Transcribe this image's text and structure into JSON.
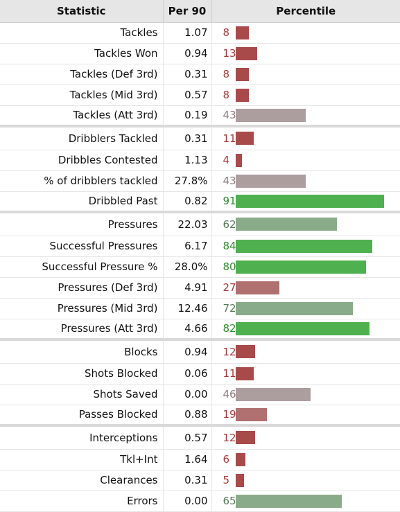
{
  "header": {
    "statistic": "Statistic",
    "per90": "Per 90",
    "percentile": "Percentile"
  },
  "colors": {
    "low": "#a94a4a",
    "mid": "#ac9d9f",
    "mid_high": "#8aab8a",
    "high": "#4fb04f"
  },
  "groups": [
    {
      "rows": [
        {
          "stat": "Tackles",
          "per90": "1.07",
          "pct": 8
        },
        {
          "stat": "Tackles Won",
          "per90": "0.94",
          "pct": 13
        },
        {
          "stat": "Tackles (Def 3rd)",
          "per90": "0.31",
          "pct": 8
        },
        {
          "stat": "Tackles (Mid 3rd)",
          "per90": "0.57",
          "pct": 8
        },
        {
          "stat": "Tackles (Att 3rd)",
          "per90": "0.19",
          "pct": 43
        }
      ]
    },
    {
      "rows": [
        {
          "stat": "Dribblers Tackled",
          "per90": "0.31",
          "pct": 11
        },
        {
          "stat": "Dribbles Contested",
          "per90": "1.13",
          "pct": 4
        },
        {
          "stat": "% of dribblers tackled",
          "per90": "27.8%",
          "pct": 43
        },
        {
          "stat": "Dribbled Past",
          "per90": "0.82",
          "pct": 91
        }
      ]
    },
    {
      "rows": [
        {
          "stat": "Pressures",
          "per90": "22.03",
          "pct": 62
        },
        {
          "stat": "Successful Pressures",
          "per90": "6.17",
          "pct": 84
        },
        {
          "stat": "Successful Pressure %",
          "per90": "28.0%",
          "pct": 80
        },
        {
          "stat": "Pressures (Def 3rd)",
          "per90": "4.91",
          "pct": 27
        },
        {
          "stat": "Pressures (Mid 3rd)",
          "per90": "12.46",
          "pct": 72
        },
        {
          "stat": "Pressures (Att 3rd)",
          "per90": "4.66",
          "pct": 82
        }
      ]
    },
    {
      "rows": [
        {
          "stat": "Blocks",
          "per90": "0.94",
          "pct": 12
        },
        {
          "stat": "Shots Blocked",
          "per90": "0.06",
          "pct": 11
        },
        {
          "stat": "Shots Saved",
          "per90": "0.00",
          "pct": 46
        },
        {
          "stat": "Passes Blocked",
          "per90": "0.88",
          "pct": 19
        }
      ]
    },
    {
      "rows": [
        {
          "stat": "Interceptions",
          "per90": "0.57",
          "pct": 12
        },
        {
          "stat": "Tkl+Int",
          "per90": "1.64",
          "pct": 6
        },
        {
          "stat": "Clearances",
          "per90": "0.31",
          "pct": 5
        },
        {
          "stat": "Errors",
          "per90": "0.00",
          "pct": 65
        }
      ]
    }
  ]
}
